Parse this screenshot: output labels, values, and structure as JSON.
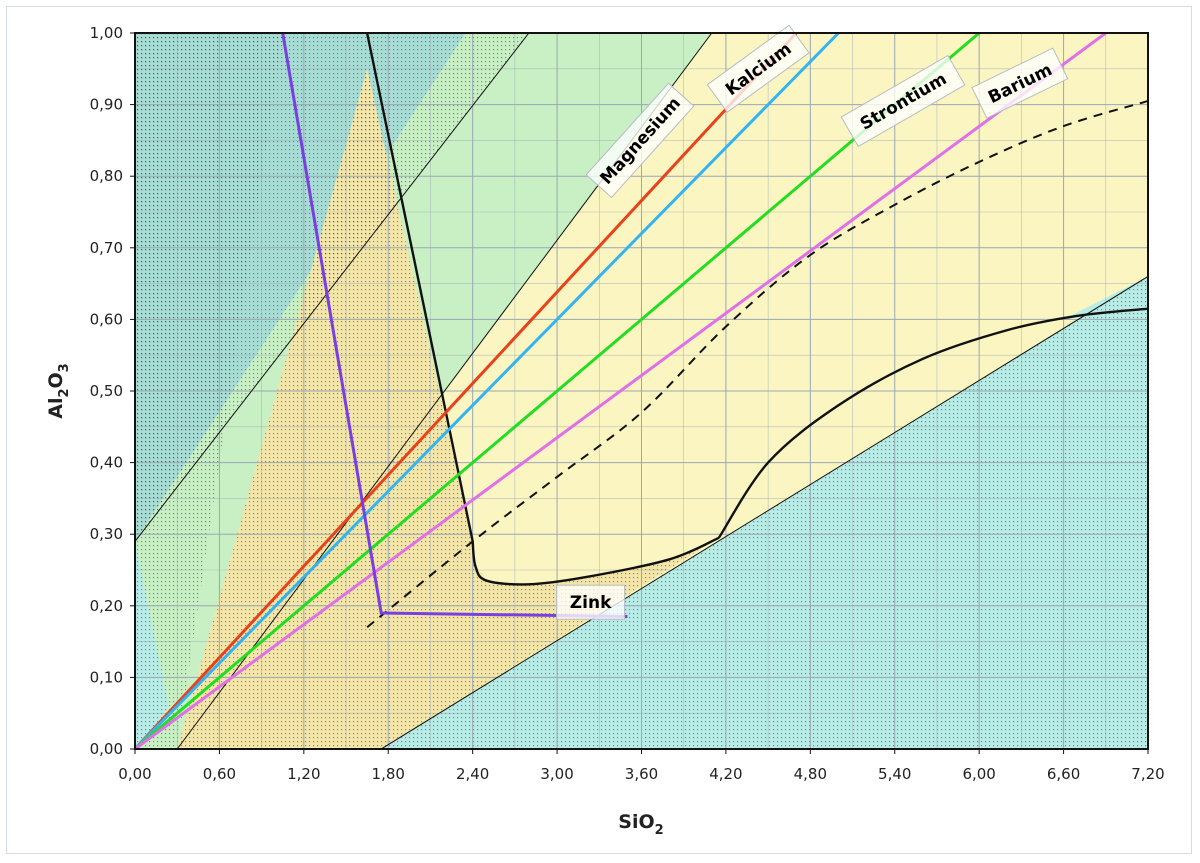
{
  "chart_data": {
    "type": "line",
    "xlabel": "SiO",
    "xlabel_sub": "2",
    "ylabel_parts": [
      "Al",
      "2",
      "O",
      "3"
    ],
    "xlim": [
      0,
      7.2
    ],
    "ylim": [
      0,
      1.0
    ],
    "grid": true,
    "x_ticks": [
      "0,00",
      "0,60",
      "1,20",
      "1,80",
      "2,40",
      "3,00",
      "3,60",
      "4,20",
      "4,80",
      "5,40",
      "6,00",
      "6,60",
      "7,20"
    ],
    "y_ticks": [
      "0,00",
      "0,10",
      "0,20",
      "0,30",
      "0,40",
      "0,50",
      "0,60",
      "0,70",
      "0,80",
      "0,90",
      "1,00"
    ],
    "colors": {
      "background_outer": "#a8ddd6",
      "band_cyan": "#b8ece6",
      "band_green": "#c8f0c4",
      "band_yellow": "#fbf5c2",
      "stipple_tan": "#f3e6a8",
      "grid": "#9aa7b4",
      "magnesium": "#e8421c",
      "kalcium": "#33b4f0",
      "strontium": "#22dd22",
      "barium": "#e070e8",
      "zink": "#7a3fe0",
      "boundary": "#111111"
    },
    "series": [
      {
        "name": "Magnesium",
        "color": "#e8421c",
        "x": [
          0,
          4.7
        ],
        "y": [
          0,
          1.0
        ]
      },
      {
        "name": "Kalcium",
        "color": "#33b4f0",
        "x": [
          0,
          5.0
        ],
        "y": [
          0,
          1.0
        ]
      },
      {
        "name": "Strontium",
        "color": "#22dd22",
        "x": [
          0,
          6.0
        ],
        "y": [
          0,
          1.0
        ]
      },
      {
        "name": "Barium",
        "color": "#e070e8",
        "x": [
          0,
          6.9
        ],
        "y": [
          0,
          1.0
        ]
      },
      {
        "name": "Zink",
        "color": "#7a3fe0",
        "x": [
          1.05,
          1.75,
          3.5
        ],
        "y": [
          1.0,
          0.19,
          0.185
        ]
      }
    ],
    "boundaries": {
      "left_curve": {
        "x": [
          1.65,
          2.4,
          2.42,
          2.5,
          2.8,
          3.2,
          3.8,
          4.15
        ],
        "y": [
          1.0,
          0.29,
          0.255,
          0.235,
          0.23,
          0.24,
          0.265,
          0.295
        ]
      },
      "right_curve": {
        "x": [
          4.15,
          4.5,
          5.0,
          5.6,
          6.2,
          6.7,
          7.2
        ],
        "y": [
          0.295,
          0.4,
          0.48,
          0.545,
          0.585,
          0.605,
          0.615
        ]
      },
      "dashed": {
        "x": [
          1.65,
          2.4,
          3.0,
          3.6,
          4.2,
          4.8,
          5.4,
          6.0,
          6.6,
          7.2
        ],
        "y": [
          0.17,
          0.29,
          0.38,
          0.47,
          0.59,
          0.69,
          0.76,
          0.82,
          0.87,
          0.905
        ]
      },
      "diag_upper": {
        "x": [
          0,
          2.8
        ],
        "y": [
          0.29,
          1.0
        ]
      },
      "diag_mid": {
        "x": [
          0.3,
          4.1
        ],
        "y": [
          0,
          1.0
        ]
      },
      "diag_lower": {
        "x": [
          1.75,
          7.2
        ],
        "y": [
          0,
          0.66
        ]
      }
    }
  }
}
